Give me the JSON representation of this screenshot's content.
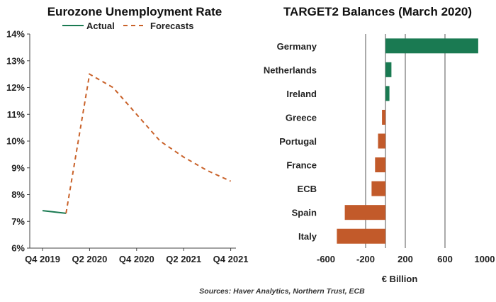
{
  "source": "Sources: Haver Analytics,  Northern Trust, ECB",
  "colors": {
    "actual": "#1a7a52",
    "forecast": "#c9622a",
    "positive": "#1a7a52",
    "negative": "#c25a2a"
  },
  "chart_data": [
    {
      "type": "line",
      "title": "Eurozone Unemployment Rate",
      "xlabel": "",
      "ylabel": "",
      "ylim": [
        6,
        14
      ],
      "yticks": [
        "6%",
        "7%",
        "8%",
        "9%",
        "10%",
        "11%",
        "12%",
        "13%",
        "14%"
      ],
      "xticks": [
        "Q4 2019",
        "Q2 2020",
        "Q4 2020",
        "Q2 2021",
        "Q4 2021"
      ],
      "x_quarters": [
        "Q4 2019",
        "Q1 2020",
        "Q2 2020",
        "Q3 2020",
        "Q4 2020",
        "Q1 2021",
        "Q2 2021",
        "Q3 2021",
        "Q4 2021"
      ],
      "legend_position": "top",
      "series": [
        {
          "name": "Actual",
          "style": "solid",
          "x": [
            "Q4 2019",
            "Q1 2020"
          ],
          "values": [
            7.4,
            7.3
          ]
        },
        {
          "name": "Forecasts",
          "style": "dashed",
          "x": [
            "Q1 2020",
            "Q2 2020",
            "Q3 2020",
            "Q4 2020",
            "Q1 2021",
            "Q2 2021",
            "Q3 2021",
            "Q4 2021"
          ],
          "values": [
            7.3,
            12.5,
            12.0,
            11.0,
            10.0,
            9.4,
            8.9,
            8.5
          ]
        }
      ]
    },
    {
      "type": "bar",
      "orientation": "horizontal",
      "title": "TARGET2 Balances (March 2020)",
      "xlabel": "€ Billion",
      "xlim": [
        -600,
        1000
      ],
      "xticks": [
        "-600",
        "-200",
        "200",
        "600",
        "1000"
      ],
      "categories": [
        "Germany",
        "Netherlands",
        "Ireland",
        "Greece",
        "Portugal",
        "France",
        "ECB",
        "Spain",
        "Italy"
      ],
      "values": [
        935,
        60,
        40,
        -35,
        -75,
        -105,
        -140,
        -410,
        -490
      ]
    }
  ]
}
